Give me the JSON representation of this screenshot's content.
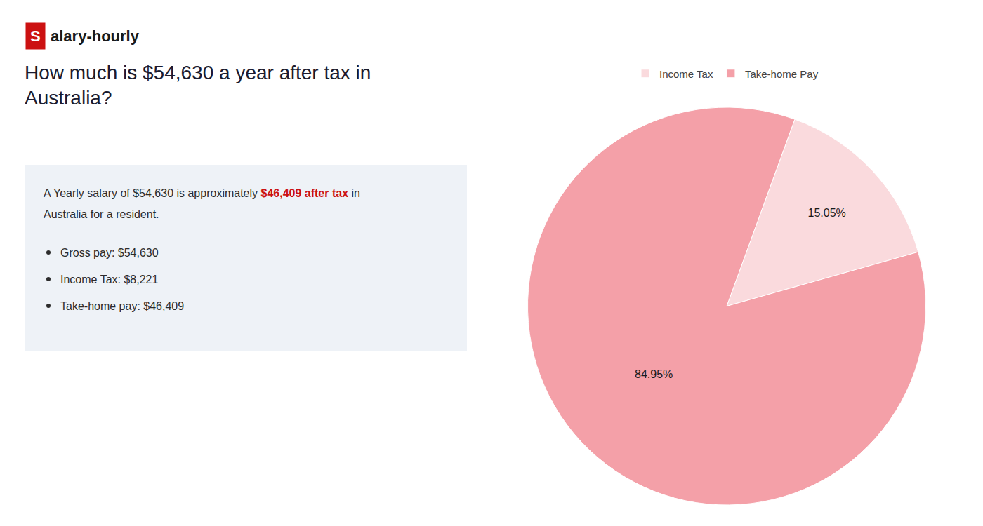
{
  "chart_data": {
    "type": "pie",
    "title": "How much is $54,630 a year after tax in\nAustralia?",
    "annotations": [
      {
        "text": "S",
        "color": "#cc1111"
      },
      {
        "text": "alary-hourly"
      },
      {
        "text": "A Yearly salary of $54,630 is approximately "
      },
      {
        "text": "$46,409 after tax",
        "color": "#cc1111"
      },
      {
        "text": " in"
      },
      {
        "text": "Australia for a resident."
      },
      {
        "text": "Gross pay: $54,630"
      },
      {
        "text": "Income Tax: $8,221"
      },
      {
        "text": "Take-home pay: $46,409"
      }
    ],
    "categories": [
      "Income Tax",
      "Take-home Pay"
    ],
    "values": [
      15.05,
      84.95
    ],
    "value_labels": [
      "15.05%",
      "84.95%"
    ],
    "colors": [
      "#fadadd",
      "#f4a0a8"
    ],
    "data_labels": true,
    "legend": "top"
  }
}
